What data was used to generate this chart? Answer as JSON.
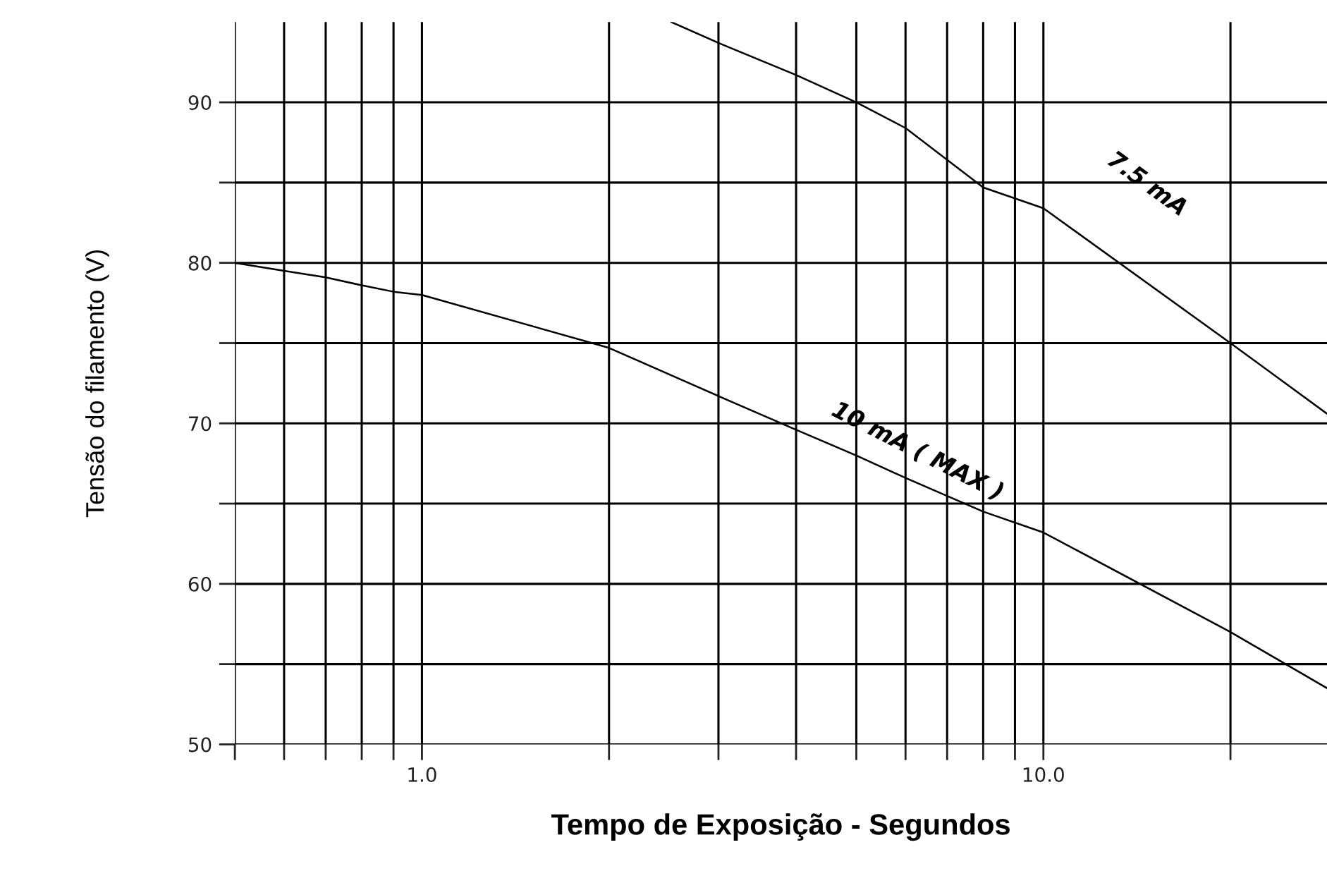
{
  "chart_data": {
    "type": "line",
    "xlabel": "Tempo de Exposição - Segundos",
    "ylabel": "Tensão do filamento (V)",
    "log": "x",
    "xlim": [
      0.5,
      28.6
    ],
    "ylim": [
      50,
      95
    ],
    "xticks": [
      {
        "value": 0.5,
        "label": null
      },
      {
        "value": 0.6,
        "label": null
      },
      {
        "value": 0.7,
        "label": null
      },
      {
        "value": 0.8,
        "label": null
      },
      {
        "value": 0.9,
        "label": null
      },
      {
        "value": 1,
        "label": "1.0"
      },
      {
        "value": 2,
        "label": null
      },
      {
        "value": 3,
        "label": null
      },
      {
        "value": 4,
        "label": null
      },
      {
        "value": 5,
        "label": null
      },
      {
        "value": 6,
        "label": null
      },
      {
        "value": 7,
        "label": null
      },
      {
        "value": 8,
        "label": null
      },
      {
        "value": 9,
        "label": null
      },
      {
        "value": 10,
        "label": "10.0"
      },
      {
        "value": 20,
        "label": null
      }
    ],
    "yticks": [
      50,
      {
        "value": 55,
        "label": null
      },
      60,
      {
        "value": 65,
        "label": null
      },
      70,
      {
        "value": 75,
        "label": null
      },
      80,
      {
        "value": 85,
        "label": null
      },
      90
    ],
    "grid": true,
    "marker": "none",
    "line_style": "solid",
    "series": [
      {
        "color": "#000000",
        "x": [
          0.5,
          0.6,
          0.7,
          0.8,
          0.9,
          1,
          2,
          3,
          4,
          5,
          6,
          8,
          10,
          20,
          28.6
        ],
        "values": [
          80,
          79.5,
          79.1,
          78.6,
          78.2,
          78,
          74.7,
          71.7,
          69.6,
          68,
          66.6,
          64.5,
          63.2,
          57,
          53.5
        ]
      },
      {
        "color": "#000000",
        "x": [
          2.52,
          3,
          4,
          5,
          6,
          8,
          10,
          20,
          28.6
        ],
        "values": [
          95,
          93.7,
          91.7,
          90,
          88.4,
          84.7,
          83.4,
          75,
          70.6
        ]
      }
    ],
    "annotations": [
      "7.5 mA",
      "10 mA ( MAX )"
    ]
  }
}
